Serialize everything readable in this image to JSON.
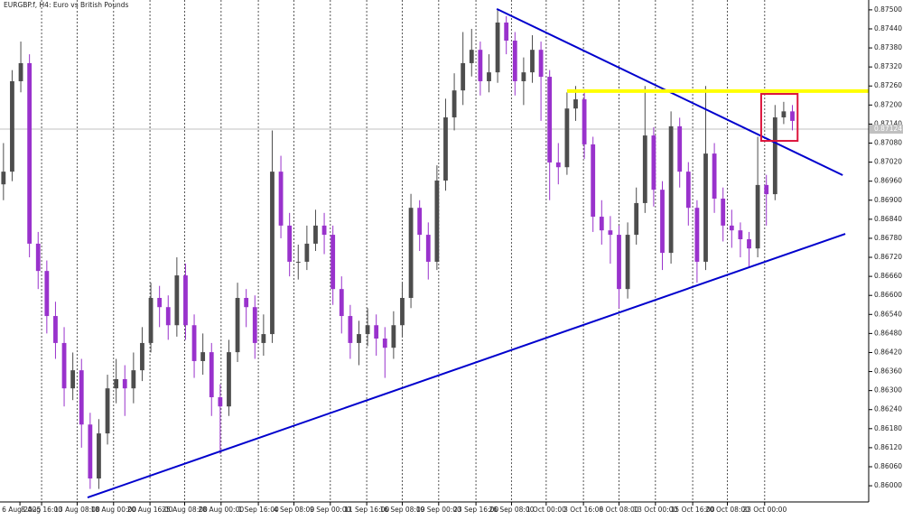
{
  "chart_data": {
    "type": "candlestick",
    "title": "EURGBP.f, H4:  Euro vs British Pounds",
    "open": [
      0.8695,
      0.8699,
      0.87275,
      0.87332,
      0.86763,
      0.86677,
      0.86535,
      0.8645,
      0.86307,
      0.86364,
      0.86193,
      0.86023,
      0.86165,
      0.86307,
      0.86336,
      0.86307,
      0.86364,
      0.8645,
      0.86592,
      0.86563,
      0.86506,
      0.86663,
      0.86506,
      0.86393,
      0.86421,
      0.86279,
      0.8625,
      0.86421,
      0.86592,
      0.86563,
      0.8645,
      0.86478,
      0.8699,
      0.8682,
      0.86706,
      0.86706,
      0.86763,
      0.8682,
      0.86791,
      0.8662,
      0.86535,
      0.8645,
      0.86478,
      0.86506,
      0.86464,
      0.86435,
      0.86506,
      0.86592,
      0.86876,
      0.86791,
      0.86706,
      0.86962,
      0.87161,
      0.87246,
      0.87332,
      0.87374,
      0.87275,
      0.87303,
      0.8746,
      0.87403,
      0.87275,
      0.87303,
      0.87374,
      0.87289,
      0.87019,
      0.87004,
      0.87189,
      0.87218,
      0.87076,
      0.86848,
      0.86805,
      0.86791,
      0.8662,
      0.86791,
      0.86891,
      0.87104,
      0.86933,
      0.86734,
      0.87133,
      0.8699,
      0.86876,
      0.86706,
      0.87047,
      0.86905,
      0.8682,
      0.86805,
      0.86777,
      0.86748,
      0.86948,
      0.86919,
      0.87161,
      0.8718
    ],
    "high": [
      0.8708,
      0.8731,
      0.874,
      0.8736,
      0.868,
      0.8671,
      0.8658,
      0.865,
      0.8642,
      0.864,
      0.8623,
      0.8621,
      0.8635,
      0.864,
      0.8638,
      0.8642,
      0.865,
      0.8664,
      0.8663,
      0.866,
      0.8672,
      0.867,
      0.8654,
      0.8648,
      0.8645,
      0.8632,
      0.8646,
      0.8664,
      0.8662,
      0.866,
      0.8654,
      0.8712,
      0.8704,
      0.8686,
      0.8676,
      0.8682,
      0.8687,
      0.8686,
      0.8682,
      0.8666,
      0.8657,
      0.8652,
      0.8656,
      0.8654,
      0.865,
      0.8655,
      0.8664,
      0.8692,
      0.869,
      0.8683,
      0.8701,
      0.8722,
      0.873,
      0.8743,
      0.8744,
      0.874,
      0.8736,
      0.875,
      0.8748,
      0.8743,
      0.8735,
      0.8742,
      0.874,
      0.8731,
      0.8708,
      0.8724,
      0.8726,
      0.8725,
      0.871,
      0.869,
      0.8685,
      0.8682,
      0.8683,
      0.8694,
      0.8726,
      0.8713,
      0.8696,
      0.8718,
      0.8716,
      0.8702,
      0.869,
      0.8726,
      0.8708,
      0.8694,
      0.8687,
      0.8683,
      0.868,
      0.871,
      0.8698,
      0.872,
      0.8721,
      0.872
    ],
    "low": [
      0.869,
      0.8696,
      0.8724,
      0.8672,
      0.8662,
      0.8648,
      0.864,
      0.8625,
      0.8627,
      0.8612,
      0.8599,
      0.8599,
      0.8613,
      0.8626,
      0.8622,
      0.8626,
      0.8633,
      0.8642,
      0.865,
      0.8646,
      0.8647,
      0.8646,
      0.8634,
      0.8635,
      0.8622,
      0.861,
      0.8622,
      0.8639,
      0.865,
      0.864,
      0.8641,
      0.8645,
      0.8678,
      0.8666,
      0.8665,
      0.8668,
      0.8674,
      0.8673,
      0.8657,
      0.8648,
      0.864,
      0.8638,
      0.8644,
      0.8641,
      0.8634,
      0.864,
      0.8647,
      0.8656,
      0.8674,
      0.8665,
      0.8668,
      0.8693,
      0.8712,
      0.872,
      0.8729,
      0.8723,
      0.8724,
      0.8727,
      0.8736,
      0.8723,
      0.872,
      0.8727,
      0.8715,
      0.869,
      0.8695,
      0.8698,
      0.8715,
      0.8703,
      0.868,
      0.8676,
      0.867,
      0.8656,
      0.8659,
      0.8676,
      0.8686,
      0.8688,
      0.8668,
      0.867,
      0.8694,
      0.8682,
      0.8664,
      0.8668,
      0.8686,
      0.8677,
      0.8675,
      0.8672,
      0.8669,
      0.8672,
      0.8682,
      0.869,
      0.8714,
      0.8712
    ],
    "close": [
      0.8699,
      0.87275,
      0.87332,
      0.86763,
      0.86677,
      0.86535,
      0.8645,
      0.86307,
      0.86364,
      0.86193,
      0.86023,
      0.86165,
      0.86307,
      0.86336,
      0.86307,
      0.86364,
      0.8645,
      0.86592,
      0.86563,
      0.86506,
      0.86663,
      0.86506,
      0.86393,
      0.86421,
      0.86279,
      0.8625,
      0.86421,
      0.86592,
      0.86563,
      0.8645,
      0.86478,
      0.8699,
      0.8682,
      0.86706,
      0.86706,
      0.86763,
      0.8682,
      0.86791,
      0.8662,
      0.86535,
      0.8645,
      0.86478,
      0.86506,
      0.86464,
      0.86435,
      0.86506,
      0.86592,
      0.86876,
      0.86791,
      0.86706,
      0.86962,
      0.87161,
      0.87246,
      0.87332,
      0.87374,
      0.87275,
      0.87303,
      0.8746,
      0.87403,
      0.87275,
      0.87303,
      0.87374,
      0.87289,
      0.87019,
      0.87004,
      0.87189,
      0.87218,
      0.87076,
      0.86848,
      0.86805,
      0.86791,
      0.8662,
      0.86791,
      0.86891,
      0.87104,
      0.86933,
      0.86734,
      0.87133,
      0.8699,
      0.86876,
      0.86706,
      0.87047,
      0.86905,
      0.8682,
      0.86805,
      0.86777,
      0.86748,
      0.86948,
      0.86919,
      0.87161,
      0.8718,
      0.8715
    ],
    "up_color": "#4d4d4d",
    "down_color": "#9932cc",
    "xlim": [
      -0.4,
      99.8
    ],
    "ylim": [
      0.85949,
      0.87531
    ],
    "xticks": [
      {
        "value": 1.9,
        "label": "6 Aug 2025"
      },
      {
        "value": 4.4,
        "label": "8 Aug 16:00"
      },
      {
        "value": 8.5,
        "label": "13 Aug 08:00"
      },
      {
        "value": 12.7,
        "label": "18 Aug 00:00"
      },
      {
        "value": 16.9,
        "label": "20 Aug 16:00"
      },
      {
        "value": 20.9,
        "label": "25 Aug 08:00"
      },
      {
        "value": 25.1,
        "label": "28 Aug 00:00"
      },
      {
        "value": 29.4,
        "label": "1 Sep 16:00"
      },
      {
        "value": 33.5,
        "label": "4 Sep 08:00"
      },
      {
        "value": 37.7,
        "label": "9 Sep 00:00"
      },
      {
        "value": 41.9,
        "label": "11 Sep 16:00"
      },
      {
        "value": 46,
        "label": "16 Sep 08:00"
      },
      {
        "value": 50.2,
        "label": "19 Sep 00:00"
      },
      {
        "value": 54.5,
        "label": "23 Sep 16:00"
      },
      {
        "value": 58.6,
        "label": "26 Sep 08:00"
      },
      {
        "value": 62.6,
        "label": "1 Oct 00:00"
      },
      {
        "value": 66.9,
        "label": "3 Oct 16:00"
      },
      {
        "value": 71,
        "label": "8 Oct 08:00"
      },
      {
        "value": 75.2,
        "label": "13 Oct 00:00"
      },
      {
        "value": 79.5,
        "label": "15 Oct 16:00"
      },
      {
        "value": 83.5,
        "label": "20 Oct 08:00"
      },
      {
        "value": 87.8,
        "label": "23 Oct 00:00"
      }
    ],
    "yticks": [
      {
        "value": 0.86,
        "label": "0.86000"
      },
      {
        "value": 0.8606,
        "label": "0.86060"
      },
      {
        "value": 0.8612,
        "label": "0.86120"
      },
      {
        "value": 0.8618,
        "label": "0.86180"
      },
      {
        "value": 0.8624,
        "label": "0.86240"
      },
      {
        "value": 0.863,
        "label": "0.86300"
      },
      {
        "value": 0.8636,
        "label": "0.86360"
      },
      {
        "value": 0.8642,
        "label": "0.86420"
      },
      {
        "value": 0.8648,
        "label": "0.86480"
      },
      {
        "value": 0.8654,
        "label": "0.86540"
      },
      {
        "value": 0.866,
        "label": "0.86600"
      },
      {
        "value": 0.8666,
        "label": "0.86660"
      },
      {
        "value": 0.8672,
        "label": "0.86720"
      },
      {
        "value": 0.8678,
        "label": "0.86780"
      },
      {
        "value": 0.8684,
        "label": "0.86840"
      },
      {
        "value": 0.869,
        "label": "0.86900"
      },
      {
        "value": 0.8696,
        "label": "0.86960"
      },
      {
        "value": 0.8702,
        "label": "0.87020"
      },
      {
        "value": 0.8708,
        "label": "0.87080"
      },
      {
        "value": 0.8714,
        "label": "0.87140"
      },
      {
        "value": 0.872,
        "label": "0.87200"
      },
      {
        "value": 0.8726,
        "label": "0.87260"
      },
      {
        "value": 0.8732,
        "label": "0.87320"
      },
      {
        "value": 0.8738,
        "label": "0.87380"
      },
      {
        "value": 0.8744,
        "label": "0.87440"
      },
      {
        "value": 0.875,
        "label": "0.87500"
      }
    ],
    "grid": "x",
    "current_price": {
      "value": 0.87124,
      "label": "0.87124",
      "color": "#c0c0c0"
    },
    "lines": [
      {
        "x": [
          56.9,
          96.8
        ],
        "y": [
          0.87503,
          0.86979
        ],
        "color": "#0000cd",
        "width": 2
      },
      {
        "x": [
          9.7,
          97.1
        ],
        "y": [
          0.85963,
          0.86794
        ],
        "color": "#0000cd",
        "width": 2
      },
      {
        "x": [
          65,
          99.8
        ],
        "y": [
          0.87244,
          0.87244
        ],
        "color": "#ffff00",
        "width": 4
      }
    ],
    "box": {
      "x": [
        87.4,
        91.6
      ],
      "y": [
        0.87235,
        0.87087
      ],
      "color": "#dc143c"
    }
  }
}
